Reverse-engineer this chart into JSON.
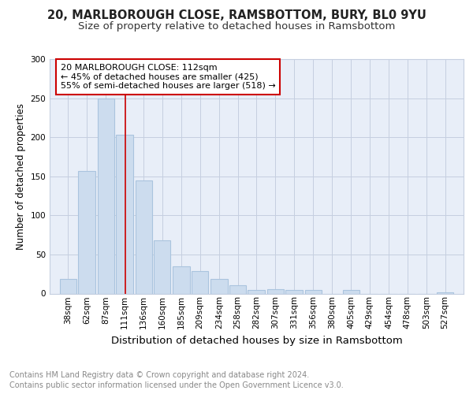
{
  "title1": "20, MARLBOROUGH CLOSE, RAMSBOTTOM, BURY, BL0 9YU",
  "title2": "Size of property relative to detached houses in Ramsbottom",
  "xlabel": "Distribution of detached houses by size in Ramsbottom",
  "ylabel": "Number of detached properties",
  "categories": [
    "38sqm",
    "62sqm",
    "87sqm",
    "111sqm",
    "136sqm",
    "160sqm",
    "185sqm",
    "209sqm",
    "234sqm",
    "258sqm",
    "282sqm",
    "307sqm",
    "331sqm",
    "356sqm",
    "380sqm",
    "405sqm",
    "429sqm",
    "454sqm",
    "478sqm",
    "503sqm",
    "527sqm"
  ],
  "values": [
    19,
    157,
    250,
    203,
    145,
    68,
    35,
    29,
    19,
    11,
    5,
    6,
    5,
    5,
    0,
    5,
    0,
    0,
    0,
    0,
    2
  ],
  "bar_color": "#ccdcee",
  "bar_edge_color": "#aac4de",
  "grid_color": "#c5cfe0",
  "bg_color": "#e8eef8",
  "vline_x_idx": 3,
  "vline_color": "#cc0000",
  "annotation_line1": "20 MARLBOROUGH CLOSE: 112sqm",
  "annotation_line2": "← 45% of detached houses are smaller (425)",
  "annotation_line3": "55% of semi-detached houses are larger (518) →",
  "annotation_box_color": "#ffffff",
  "annotation_box_edge": "#cc0000",
  "footnote1": "Contains HM Land Registry data © Crown copyright and database right 2024.",
  "footnote2": "Contains public sector information licensed under the Open Government Licence v3.0.",
  "title1_fontsize": 10.5,
  "title2_fontsize": 9.5,
  "xlabel_fontsize": 9.5,
  "ylabel_fontsize": 8.5,
  "tick_fontsize": 7.5,
  "annot_fontsize": 8.0,
  "footnote_fontsize": 7.0,
  "ylim": [
    0,
    300
  ],
  "x_centers": [
    38,
    62,
    87,
    111,
    136,
    160,
    185,
    209,
    234,
    258,
    282,
    307,
    331,
    356,
    380,
    405,
    429,
    454,
    478,
    503,
    527
  ]
}
